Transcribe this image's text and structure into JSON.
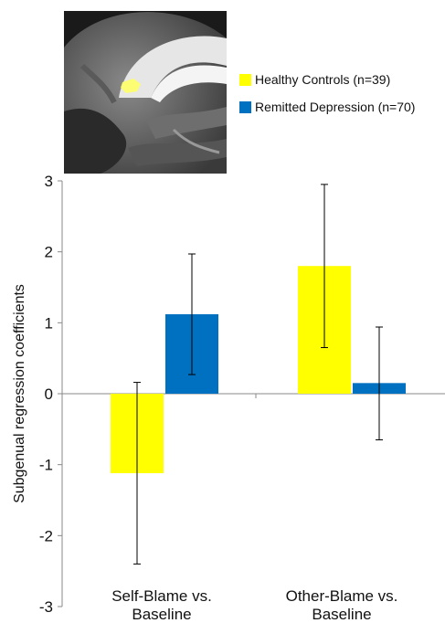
{
  "legend": {
    "items": [
      {
        "label": "Healthy Controls (n=39)",
        "color": "#ffff00"
      },
      {
        "label": "Remitted Depression (n=70)",
        "color": "#0070c0"
      }
    ]
  },
  "brain_image": {
    "description_icon": "sagittal-brain-slice-icon",
    "highlight_color": "#ffff66"
  },
  "chart_data": {
    "type": "bar",
    "categories": [
      "Self-Blame vs. Baseline",
      "Other-Blame vs. Baseline"
    ],
    "category_lines": [
      [
        "Self-Blame vs.",
        "Baseline"
      ],
      [
        "Other-Blame vs.",
        "Baseline"
      ]
    ],
    "series": [
      {
        "name": "Healthy Controls (n=39)",
        "color": "#ffff00",
        "values": [
          -1.12,
          1.8
        ],
        "error_low": [
          -2.4,
          0.65
        ],
        "error_high": [
          0.16,
          2.95
        ]
      },
      {
        "name": "Remitted Depression (n=70)",
        "color": "#0070c0",
        "values": [
          1.12,
          0.15
        ],
        "error_low": [
          0.27,
          -0.65
        ],
        "error_high": [
          1.97,
          0.94
        ]
      }
    ],
    "ylabel": "Subgenual regression coefficients",
    "xlabel": "",
    "ylim": [
      -3,
      3
    ],
    "yticks": [
      3,
      2,
      1,
      0,
      -1,
      -2,
      -3
    ],
    "ytick_labels": [
      "3",
      "2",
      "1",
      "0",
      "-1",
      "-2",
      "-3"
    ],
    "grid": false,
    "legend_position": "top-right"
  }
}
